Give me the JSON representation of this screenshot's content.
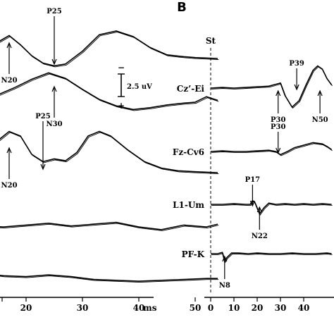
{
  "chart_data": [
    {
      "type": "line",
      "panel_label": "",
      "x_unit": "ms",
      "x_ticks": [
        20,
        30,
        40,
        50
      ],
      "scale_bar": {
        "label": "2.5 uV",
        "neg": "−",
        "pos": "+"
      },
      "annotations": [
        {
          "id": "p25a",
          "text": "P25",
          "x": 25,
          "trace": 0,
          "dir": "down"
        },
        {
          "id": "n20a",
          "text": "N20",
          "x": 17,
          "trace": 0,
          "dir": "up"
        },
        {
          "id": "n30",
          "text": "N30",
          "x": 25,
          "trace": 1,
          "dir": "up"
        },
        {
          "id": "p25b",
          "text": "P25",
          "x": 23,
          "trace": 2,
          "dir": "down"
        },
        {
          "id": "n20b",
          "text": "N20",
          "x": 17,
          "trace": 2,
          "dir": "up"
        }
      ],
      "series": [
        {
          "x": [
            0,
            3,
            6,
            9,
            12,
            15,
            17,
            19,
            21,
            23,
            25,
            27,
            30,
            33,
            36,
            39,
            42,
            45,
            48,
            50,
            54
          ],
          "y": [
            1.0,
            0.8,
            0.5,
            0.2,
            0.5,
            1.8,
            2.5,
            1.5,
            0.3,
            -0.5,
            -0.8,
            -0.6,
            0.8,
            2.6,
            3.0,
            2.4,
            1.2,
            0.4,
            0.2,
            0.1,
            0.0
          ]
        },
        {
          "x": [
            0,
            3,
            6,
            9,
            12,
            15,
            18,
            21,
            24,
            27,
            30,
            33,
            36,
            39,
            42,
            45,
            48,
            50,
            52,
            54
          ],
          "y": [
            0.0,
            0.6,
            0.9,
            0.6,
            0.4,
            0.8,
            1.6,
            2.5,
            3.2,
            2.6,
            1.4,
            0.3,
            -0.4,
            -0.8,
            -0.6,
            -0.3,
            -0.1,
            0.0,
            0.6,
            0.2
          ]
        },
        {
          "x": [
            0,
            3,
            6,
            9,
            12,
            15,
            17,
            19,
            21,
            23,
            25,
            27,
            29,
            31,
            33,
            35,
            38,
            41,
            44,
            47,
            50,
            54
          ],
          "y": [
            0.0,
            0.1,
            -0.2,
            -0.3,
            0.5,
            2.5,
            3.5,
            3.0,
            1.0,
            0.2,
            0.5,
            0.3,
            1.2,
            3.0,
            3.5,
            3.0,
            1.5,
            0.2,
            -0.5,
            -0.8,
            -0.9,
            -1.0
          ]
        },
        {
          "x": [
            0,
            4,
            8,
            12,
            16,
            20,
            24,
            28,
            32,
            36,
            40,
            44,
            48,
            52,
            54
          ],
          "y": [
            0.4,
            0.0,
            0.2,
            0.1,
            0.0,
            0.2,
            0.4,
            0.1,
            0.3,
            0.5,
            0.0,
            -0.3,
            0.2,
            0.0,
            0.3
          ]
        },
        {
          "x": [
            0,
            4,
            8,
            12,
            16,
            20,
            24,
            28,
            32,
            36,
            40,
            44,
            48,
            52,
            54
          ],
          "y": [
            0.4,
            0.2,
            0.1,
            0.2,
            -0.1,
            -0.2,
            0.0,
            -0.2,
            -0.5,
            -0.6,
            -0.7,
            -0.6,
            -0.5,
            -0.4,
            -0.4
          ]
        }
      ]
    },
    {
      "type": "line",
      "panel_label": "B",
      "x_unit": "",
      "x_ticks": [
        0,
        10,
        20,
        30,
        40
      ],
      "stim_label": "St",
      "channels": [
        "Cz’-Ei",
        "Fz-Cv6",
        "L1-Um",
        "PF-K"
      ],
      "annotations": [
        {
          "id": "p39",
          "text": "P39",
          "x": 37,
          "trace": 0,
          "dir": "down"
        },
        {
          "id": "p30u",
          "text": "P30",
          "x": 29,
          "trace": 0,
          "dir": "up"
        },
        {
          "id": "n50",
          "text": "N50",
          "x": 47,
          "trace": 0,
          "dir": "up"
        },
        {
          "id": "p30d",
          "text": "P30",
          "x": 29,
          "trace": 1,
          "dir": "down"
        },
        {
          "id": "p17",
          "text": "P17",
          "x": 18,
          "trace": 2,
          "dir": "down"
        },
        {
          "id": "n22",
          "text": "N22",
          "x": 21,
          "trace": 2,
          "dir": "up"
        },
        {
          "id": "n8",
          "text": "N8",
          "x": 6,
          "trace": 3,
          "dir": "up"
        }
      ],
      "series": [
        {
          "name": "Cz’-Ei",
          "x": [
            0,
            5,
            10,
            15,
            20,
            25,
            28,
            30,
            32,
            35,
            38,
            41,
            44,
            46,
            48,
            50,
            52
          ],
          "y": [
            0.0,
            0.1,
            0.0,
            0.1,
            0.2,
            0.3,
            0.6,
            0.8,
            -1.2,
            -3.0,
            -2.0,
            0.5,
            2.8,
            3.5,
            3.0,
            1.5,
            0.5
          ]
        },
        {
          "name": "Fz-Cv6",
          "x": [
            0,
            5,
            10,
            15,
            20,
            25,
            28,
            30,
            33,
            36,
            40,
            44,
            48,
            50,
            52
          ],
          "y": [
            0.0,
            0.1,
            0.0,
            0.0,
            0.1,
            0.2,
            0.0,
            -0.5,
            0.0,
            0.6,
            1.0,
            1.4,
            1.2,
            0.8,
            0.3
          ]
        },
        {
          "name": "L1-Um",
          "x": [
            0,
            5,
            10,
            15,
            17,
            18,
            19,
            21,
            23,
            25,
            28,
            32,
            36,
            40,
            44,
            48,
            52
          ],
          "y": [
            0.0,
            0.0,
            0.1,
            0.0,
            0.0,
            0.6,
            0.3,
            -1.5,
            -0.5,
            0.2,
            0.0,
            0.1,
            0.0,
            0.1,
            0.0,
            0.1,
            0.0
          ]
        },
        {
          "name": "PF-K",
          "x": [
            0,
            3,
            5,
            6,
            7,
            9,
            12,
            16,
            20,
            25,
            30,
            35,
            40,
            45,
            50,
            52
          ],
          "y": [
            0.0,
            0.0,
            0.2,
            -1.2,
            -0.6,
            0.1,
            0.1,
            0.0,
            0.1,
            0.0,
            0.0,
            0.1,
            0.0,
            0.0,
            0.1,
            0.0
          ]
        }
      ]
    }
  ]
}
